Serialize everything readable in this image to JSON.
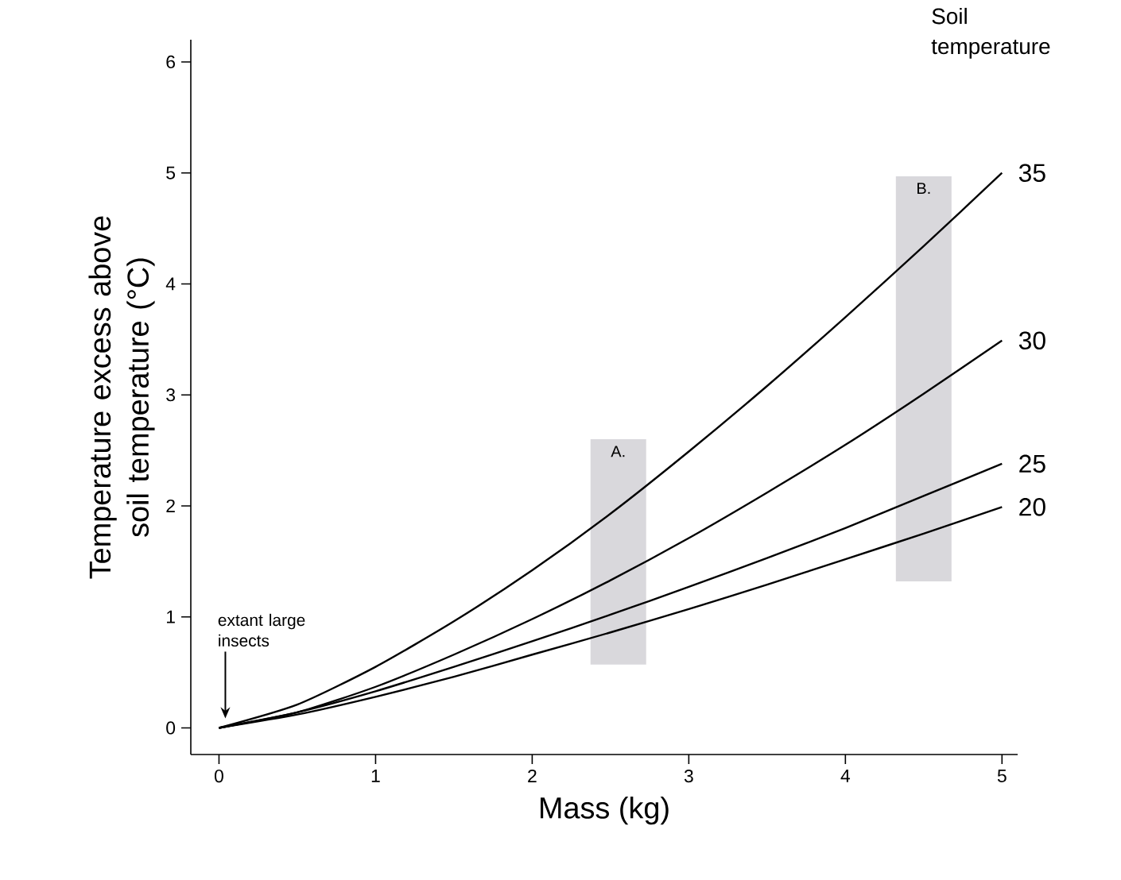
{
  "chart_data": {
    "type": "line",
    "xlabel": "Mass (kg)",
    "ylabel": "Temperature excess above soil temperature (°C)",
    "legend_title": "Soil temperature",
    "xlim": [
      -0.18,
      5.1
    ],
    "ylim": [
      -0.24,
      6.2
    ],
    "xticks": [
      0,
      1,
      2,
      3,
      4,
      5
    ],
    "yticks": [
      0,
      1,
      2,
      3,
      4,
      5,
      6
    ],
    "grid": false,
    "series": [
      {
        "type": "bar",
        "name": "A.",
        "color": "#d9d8dc",
        "x": [
          2.55
        ],
        "base": [
          0.57
        ],
        "values": [
          2.03
        ]
      },
      {
        "type": "bar",
        "name": "B.",
        "color": "#d9d8dc",
        "x": [
          4.5
        ],
        "base": [
          1.32
        ],
        "values": [
          3.65
        ]
      },
      {
        "name": "35",
        "color": "#000000",
        "x": [
          0,
          0.5,
          1,
          1.5,
          2,
          2.5,
          3,
          3.5,
          4,
          4.5,
          5
        ],
        "values": [
          0,
          0.21,
          0.55,
          0.96,
          1.42,
          1.93,
          2.49,
          3.08,
          3.7,
          4.34,
          5.0
        ]
      },
      {
        "name": "30",
        "color": "#000000",
        "x": [
          0,
          0.5,
          1,
          1.5,
          2,
          2.5,
          3,
          3.5,
          4,
          4.5,
          5
        ],
        "values": [
          0,
          0.14,
          0.37,
          0.66,
          0.98,
          1.33,
          1.71,
          2.12,
          2.55,
          3.01,
          3.49
        ]
      },
      {
        "name": "25",
        "color": "#000000",
        "x": [
          0,
          0.5,
          1,
          1.5,
          2,
          2.5,
          3,
          3.5,
          4,
          4.5,
          5
        ],
        "values": [
          0,
          0.14,
          0.33,
          0.55,
          0.78,
          1.02,
          1.27,
          1.53,
          1.8,
          2.09,
          2.38
        ]
      },
      {
        "name": "20",
        "color": "#000000",
        "x": [
          0,
          0.5,
          1,
          1.5,
          2,
          2.5,
          3,
          3.5,
          4,
          4.5,
          5
        ],
        "values": [
          0,
          0.12,
          0.28,
          0.46,
          0.66,
          0.86,
          1.07,
          1.29,
          1.52,
          1.75,
          1.99
        ]
      }
    ],
    "annotations": [
      "extant large insects"
    ]
  }
}
